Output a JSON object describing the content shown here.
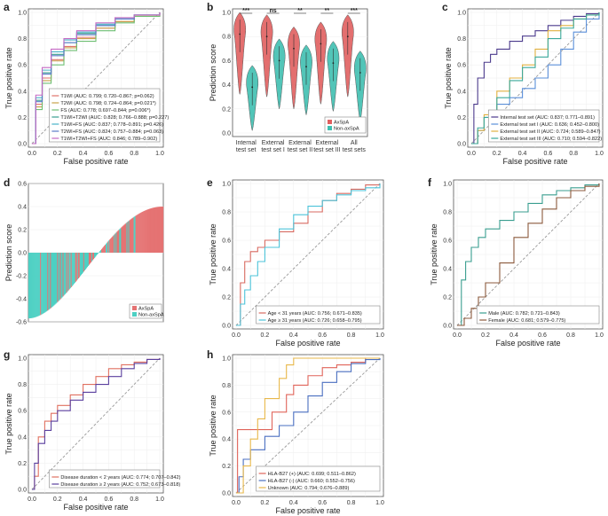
{
  "chart_data": [
    {
      "panel": "a",
      "type": "line",
      "xlabel": "False positive rate",
      "ylabel": "True positive rate",
      "xticks": [
        "0.0",
        "0.2",
        "0.4",
        "0.6",
        "0.8",
        "1.0"
      ],
      "yticks": [
        "0.0",
        "0.2",
        "0.4",
        "0.6",
        "0.8",
        "1.0"
      ],
      "legend_position": "bottom-right",
      "series": [
        {
          "name": "T1WI (AUC: 0.799; 0.720–0.867; p=0.062)",
          "color": "#e0736a",
          "x": [
            0,
            0.03,
            0.08,
            0.15,
            0.25,
            0.35,
            0.5,
            0.65,
            0.8,
            1
          ],
          "y": [
            0,
            0.3,
            0.5,
            0.64,
            0.74,
            0.81,
            0.88,
            0.93,
            0.97,
            1
          ]
        },
        {
          "name": "T2WI (AUC: 0.798; 0.724–0.864; p=0.021*)",
          "color": "#c8a24a",
          "x": [
            0,
            0.03,
            0.08,
            0.15,
            0.25,
            0.35,
            0.5,
            0.65,
            0.8,
            1
          ],
          "y": [
            0,
            0.28,
            0.48,
            0.63,
            0.73,
            0.8,
            0.88,
            0.93,
            0.97,
            1
          ]
        },
        {
          "name": "FS (AUC: 0.778; 0.697–0.844; p=0.006*)",
          "color": "#6fbf73",
          "x": [
            0,
            0.03,
            0.08,
            0.15,
            0.25,
            0.35,
            0.5,
            0.65,
            0.8,
            1
          ],
          "y": [
            0,
            0.26,
            0.46,
            0.6,
            0.71,
            0.78,
            0.86,
            0.92,
            0.97,
            1
          ]
        },
        {
          "name": "T1WI+T2WI (AUC: 0.828; 0.766–0.888; p=0.227)",
          "color": "#3a9e8f",
          "x": [
            0,
            0.03,
            0.08,
            0.15,
            0.25,
            0.35,
            0.5,
            0.65,
            0.8,
            1
          ],
          "y": [
            0,
            0.33,
            0.54,
            0.68,
            0.77,
            0.84,
            0.9,
            0.95,
            0.98,
            1
          ]
        },
        {
          "name": "T1WI+FS (AUC: 0.837; 0.778–0.891; p=0.426)",
          "color": "#48b5c8",
          "x": [
            0,
            0.03,
            0.08,
            0.15,
            0.25,
            0.35,
            0.5,
            0.65,
            0.8,
            1
          ],
          "y": [
            0,
            0.35,
            0.56,
            0.7,
            0.79,
            0.85,
            0.91,
            0.95,
            0.98,
            1
          ]
        },
        {
          "name": "T2WI+FS (AUC: 0.824; 0.757–0.884; p=0.063)",
          "color": "#5b7cc9",
          "x": [
            0,
            0.03,
            0.08,
            0.15,
            0.25,
            0.35,
            0.5,
            0.65,
            0.8,
            1
          ],
          "y": [
            0,
            0.32,
            0.53,
            0.67,
            0.77,
            0.83,
            0.9,
            0.95,
            0.98,
            1
          ]
        },
        {
          "name": "T1WI+T2WI+FS (AUC: 0.846; 0.789–0.902)",
          "color": "#c46ac4",
          "x": [
            0,
            0.03,
            0.08,
            0.15,
            0.25,
            0.35,
            0.5,
            0.65,
            0.8,
            1
          ],
          "y": [
            0,
            0.37,
            0.58,
            0.72,
            0.8,
            0.86,
            0.92,
            0.96,
            0.98,
            1
          ]
        }
      ]
    },
    {
      "panel": "b",
      "type": "violin",
      "ylabel": "Prediction score",
      "yticks": [
        "0.0",
        "0.2",
        "0.4",
        "0.6",
        "0.8",
        "1.0"
      ],
      "ylim": [
        0,
        1
      ],
      "categories": [
        "Internal test set",
        "External test set I",
        "External test set II",
        "External test set III",
        "All test sets"
      ],
      "significance": [
        "***",
        "ns",
        "**",
        "**",
        "***"
      ],
      "series": [
        {
          "name": "AxSpA",
          "color": "#e05f5f",
          "medians": [
            0.82,
            0.8,
            0.7,
            0.74,
            0.8
          ]
        },
        {
          "name": "Non-axSpA",
          "color": "#3fbfb0",
          "medians": [
            0.38,
            0.6,
            0.55,
            0.58,
            0.5
          ]
        }
      ],
      "legend_position": "bottom-right"
    },
    {
      "panel": "c",
      "type": "line",
      "xlabel": "False positive rate",
      "ylabel": "True positive rate",
      "xticks": [
        "0.0",
        "0.2",
        "0.4",
        "0.6",
        "0.8",
        "1.0"
      ],
      "yticks": [
        "0.0",
        "0.2",
        "0.4",
        "0.6",
        "0.8",
        "1.0"
      ],
      "legend_position": "bottom-right",
      "series": [
        {
          "name": "Internal test set (AUC: 0.837; 0.771–0.891)",
          "color": "#4b3a8c",
          "x": [
            0,
            0.02,
            0.05,
            0.1,
            0.15,
            0.2,
            0.3,
            0.4,
            0.5,
            0.6,
            0.7,
            0.8,
            0.9,
            1
          ],
          "y": [
            0,
            0.3,
            0.5,
            0.62,
            0.68,
            0.72,
            0.78,
            0.82,
            0.86,
            0.9,
            0.94,
            0.97,
            0.99,
            1
          ]
        },
        {
          "name": "External test set I (AUC: 0.636; 0.452–0.800)",
          "color": "#5b8fd9",
          "x": [
            0,
            0.05,
            0.1,
            0.2,
            0.3,
            0.4,
            0.5,
            0.6,
            0.7,
            0.8,
            0.9,
            1
          ],
          "y": [
            0,
            0.1,
            0.2,
            0.3,
            0.35,
            0.42,
            0.5,
            0.6,
            0.72,
            0.85,
            0.95,
            1
          ]
        },
        {
          "name": "External test set II (AUC: 0.724; 0.589–0.847)",
          "color": "#e0b040",
          "x": [
            0,
            0.05,
            0.1,
            0.2,
            0.3,
            0.4,
            0.5,
            0.6,
            0.7,
            0.8,
            0.9,
            1
          ],
          "y": [
            0,
            0.1,
            0.22,
            0.4,
            0.5,
            0.6,
            0.72,
            0.86,
            0.9,
            0.95,
            0.98,
            1
          ]
        },
        {
          "name": "External test set III (AUC: 0.710; 0.594–0.822)",
          "color": "#3aa89a",
          "x": [
            0,
            0.05,
            0.1,
            0.2,
            0.3,
            0.4,
            0.5,
            0.6,
            0.7,
            0.8,
            0.9,
            1
          ],
          "y": [
            0,
            0.12,
            0.2,
            0.35,
            0.48,
            0.58,
            0.66,
            0.8,
            0.88,
            0.95,
            0.98,
            1
          ]
        }
      ]
    },
    {
      "panel": "d",
      "type": "bar",
      "ylabel": "Prediction score",
      "yticks": [
        "0.6",
        "0.4",
        "0.2",
        "0.0",
        "-0.2",
        "-0.4",
        "-0.6"
      ],
      "ylim": [
        -0.6,
        0.6
      ],
      "series": [
        {
          "name": "AxSpA",
          "color": "#e57373"
        },
        {
          "name": "Non-axSpA",
          "color": "#4dd0c3"
        }
      ],
      "value_range": [
        -0.57,
        0.4
      ],
      "legend_position": "bottom-right"
    },
    {
      "panel": "e",
      "type": "line",
      "xlabel": "False positive rate",
      "ylabel": "True positive rate",
      "xticks": [
        "0.0",
        "0.2",
        "0.4",
        "0.6",
        "0.8",
        "1.0"
      ],
      "yticks": [
        "0.0",
        "0.2",
        "0.4",
        "0.6",
        "0.8",
        "1.0"
      ],
      "legend_position": "bottom-right",
      "series": [
        {
          "name": "Age < 31 years (AUC: 0.756; 0.671–0.835)",
          "color": "#d86a60",
          "x": [
            0,
            0.03,
            0.06,
            0.1,
            0.15,
            0.2,
            0.3,
            0.4,
            0.5,
            0.6,
            0.7,
            0.8,
            0.9,
            1
          ],
          "y": [
            0,
            0.3,
            0.45,
            0.52,
            0.55,
            0.6,
            0.66,
            0.72,
            0.8,
            0.88,
            0.93,
            0.96,
            0.99,
            1
          ]
        },
        {
          "name": "Age ≥ 31 years (AUC: 0.726; 0.658–0.795)",
          "color": "#4cc3d9",
          "x": [
            0,
            0.03,
            0.06,
            0.1,
            0.15,
            0.2,
            0.3,
            0.4,
            0.5,
            0.6,
            0.7,
            0.8,
            0.9,
            1
          ],
          "y": [
            0,
            0.15,
            0.25,
            0.35,
            0.45,
            0.55,
            0.68,
            0.78,
            0.84,
            0.88,
            0.92,
            0.95,
            0.97,
            1
          ]
        }
      ]
    },
    {
      "panel": "f",
      "type": "line",
      "xlabel": "False positive rate",
      "ylabel": "True positive rate",
      "xticks": [
        "0.0",
        "0.2",
        "0.4",
        "0.6",
        "0.8",
        "1.0"
      ],
      "yticks": [
        "0.0",
        "0.2",
        "0.4",
        "0.6",
        "0.8",
        "1.0"
      ],
      "legend_position": "bottom-right",
      "series": [
        {
          "name": "Male (AUC: 0.782; 0.721–0.843)",
          "color": "#3a9e8f",
          "x": [
            0,
            0.03,
            0.06,
            0.1,
            0.15,
            0.2,
            0.3,
            0.4,
            0.5,
            0.6,
            0.7,
            0.8,
            0.9,
            1
          ],
          "y": [
            0,
            0.32,
            0.45,
            0.55,
            0.62,
            0.68,
            0.74,
            0.8,
            0.86,
            0.92,
            0.95,
            0.97,
            0.99,
            1
          ]
        },
        {
          "name": "Female (AUC: 0.681; 0.579–0.775)",
          "color": "#8b5a3c",
          "x": [
            0,
            0.05,
            0.1,
            0.15,
            0.2,
            0.3,
            0.4,
            0.5,
            0.6,
            0.7,
            0.8,
            0.9,
            1
          ],
          "y": [
            0,
            0.05,
            0.12,
            0.2,
            0.3,
            0.44,
            0.62,
            0.72,
            0.82,
            0.9,
            0.95,
            0.98,
            1
          ]
        }
      ]
    },
    {
      "panel": "g",
      "type": "line",
      "xlabel": "False positive rate",
      "ylabel": "True positive rate",
      "xticks": [
        "0.0",
        "0.2",
        "0.4",
        "0.6",
        "0.8",
        "1.0"
      ],
      "yticks": [
        "0.0",
        "0.2",
        "0.4",
        "0.6",
        "0.8",
        "1.0"
      ],
      "legend_position": "bottom-right",
      "series": [
        {
          "name": "Disease duration < 2 years (AUC: 0.774; 0.707–0.842)",
          "color": "#e07060",
          "x": [
            0,
            0.02,
            0.05,
            0.1,
            0.15,
            0.2,
            0.3,
            0.4,
            0.5,
            0.6,
            0.7,
            0.8,
            0.9,
            1
          ],
          "y": [
            0,
            0.1,
            0.4,
            0.52,
            0.58,
            0.64,
            0.72,
            0.8,
            0.86,
            0.92,
            0.95,
            0.97,
            0.99,
            1
          ]
        },
        {
          "name": "Disease duration ≥ 2 years (AUC: 0.752; 0.673–0.818)",
          "color": "#5a3f9e",
          "x": [
            0,
            0.02,
            0.05,
            0.1,
            0.15,
            0.2,
            0.3,
            0.4,
            0.5,
            0.6,
            0.7,
            0.8,
            0.9,
            1
          ],
          "y": [
            0,
            0.2,
            0.35,
            0.45,
            0.52,
            0.6,
            0.68,
            0.74,
            0.8,
            0.86,
            0.92,
            0.96,
            0.99,
            1
          ]
        }
      ]
    },
    {
      "panel": "h",
      "type": "line",
      "xlabel": "False positive rate",
      "ylabel": "True positive rate",
      "xticks": [
        "0.0",
        "0.2",
        "0.4",
        "0.6",
        "0.8",
        "1.0"
      ],
      "yticks": [
        "0.0",
        "0.2",
        "0.4",
        "0.6",
        "0.8",
        "1.0"
      ],
      "legend_position": "bottom-right",
      "series": [
        {
          "name": "HLA-B27 (+) (AUC: 0.699; 0.511–0.862)",
          "color": "#e0645a",
          "x": [
            0,
            0.01,
            0.1,
            0.2,
            0.25,
            0.3,
            0.35,
            0.4,
            0.5,
            0.6,
            0.7,
            0.8,
            0.9,
            1
          ],
          "y": [
            0,
            0.47,
            0.47,
            0.47,
            0.6,
            0.6,
            0.73,
            0.8,
            0.87,
            0.93,
            0.95,
            0.97,
            1,
            1
          ]
        },
        {
          "name": "HLA-B27 (-) (AUC: 0.660; 0.552–0.756)",
          "color": "#4a6fc0",
          "x": [
            0,
            0.02,
            0.05,
            0.1,
            0.2,
            0.3,
            0.4,
            0.5,
            0.6,
            0.7,
            0.8,
            0.9,
            1
          ],
          "y": [
            0,
            0.12,
            0.25,
            0.32,
            0.42,
            0.5,
            0.6,
            0.72,
            0.82,
            0.9,
            0.96,
            0.99,
            1
          ]
        },
        {
          "name": "Unknown (AUC: 0.794; 0.676–0.889)",
          "color": "#e8b84a",
          "x": [
            0,
            0.05,
            0.1,
            0.15,
            0.2,
            0.3,
            0.35,
            0.4,
            0.5,
            0.6,
            0.7,
            0.8,
            0.9,
            1
          ],
          "y": [
            0,
            0.2,
            0.4,
            0.55,
            0.7,
            0.85,
            0.95,
            1,
            1,
            1,
            1,
            1,
            1,
            1
          ]
        }
      ]
    }
  ]
}
